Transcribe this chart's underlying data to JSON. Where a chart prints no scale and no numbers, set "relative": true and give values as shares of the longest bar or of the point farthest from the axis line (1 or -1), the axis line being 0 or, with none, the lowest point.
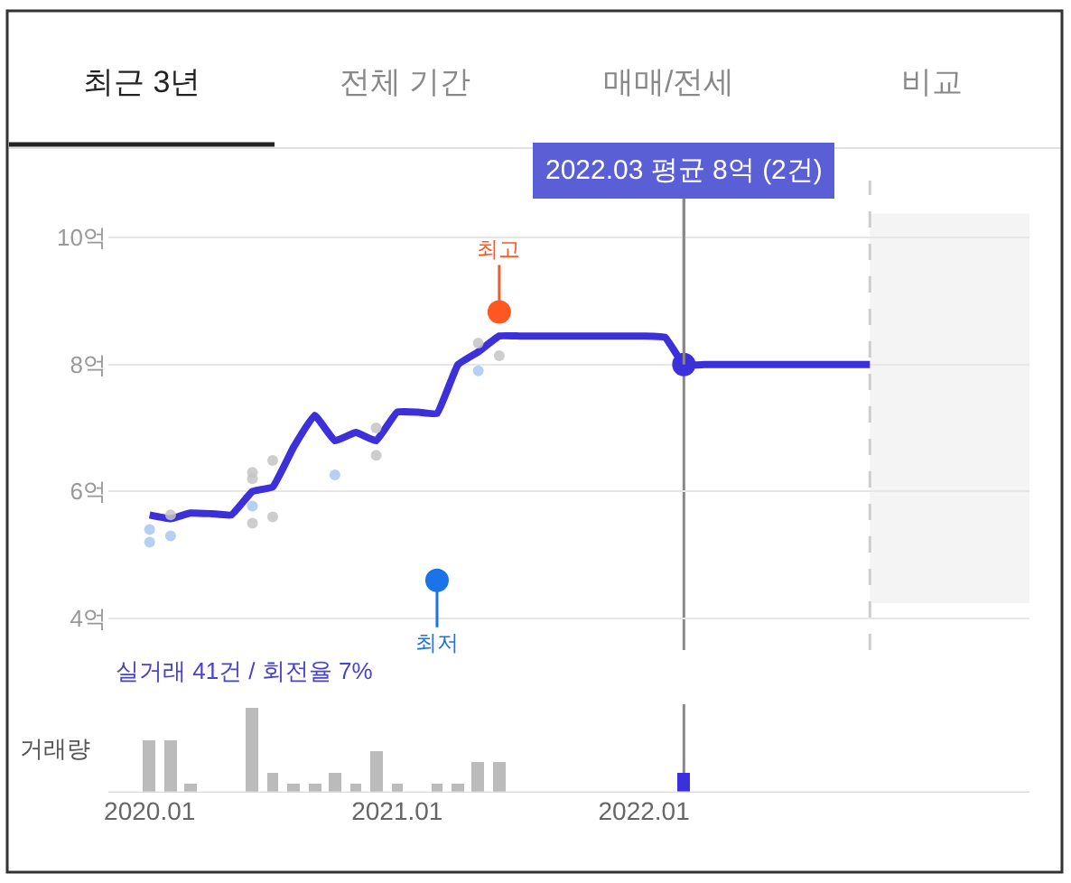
{
  "chart_data": [
    {
      "type": "other",
      "annotations": [
        "최근 3년",
        "전체 기간",
        "매매/전세",
        "비교"
      ]
    },
    {
      "type": "line",
      "x": [
        "2020-01",
        "2020-02",
        "2020-03",
        "2020-04",
        "2020-05",
        "2020-06",
        "2020-07",
        "2020-08",
        "2020-09",
        "2020-10",
        "2020-11",
        "2020-12",
        "2021-01",
        "2021-02",
        "2021-03",
        "2021-04",
        "2021-05",
        "2021-06",
        "2021-07",
        "2021-08",
        "2021-09",
        "2021-10",
        "2021-11",
        "2021-12",
        "2022-01",
        "2022-02",
        "2022-03",
        "2022-04",
        "2022-05",
        "2022-06",
        "2022-07",
        "2022-08",
        "2022-09",
        "2022-10",
        "2022-11",
        "2022-12"
      ],
      "series": [
        {
          "type": "line",
          "marker": "none",
          "color": "#3b30d9",
          "values": [
            5.63,
            5.57,
            5.66,
            5.65,
            5.63,
            6.0,
            6.07,
            6.7,
            7.2,
            6.8,
            6.93,
            6.8,
            7.25,
            7.25,
            7.23,
            8.0,
            8.2,
            8.45,
            8.45,
            8.45,
            8.45,
            8.45,
            8.45,
            8.45,
            8.45,
            8.43,
            8.0,
            8.0,
            8.0,
            8.0,
            8.0,
            8.0,
            8.0,
            8.0,
            8.0,
            8.0
          ]
        },
        {
          "type": "scatter",
          "color": "#c4c4c4",
          "x": [
            "2020-02",
            "2020-06",
            "2020-06",
            "2020-06",
            "2020-07",
            "2020-07",
            "2020-12",
            "2020-12",
            "2021-05",
            "2021-06"
          ],
          "values": [
            5.63,
            6.3,
            6.2,
            5.5,
            6.49,
            5.6,
            7.0,
            6.57,
            8.34,
            8.14
          ]
        },
        {
          "type": "scatter",
          "color": "#a8c8f0",
          "x": [
            "2020-01",
            "2020-01",
            "2020-02",
            "2020-06",
            "2020-10",
            "2021-05"
          ],
          "values": [
            5.4,
            5.2,
            5.3,
            5.77,
            6.26,
            7.9
          ]
        },
        {
          "type": "scatter",
          "colors": [
            "#ff5722",
            "#1a73e8",
            "#3b30d9"
          ],
          "x": [
            "2021-06",
            "2021-03",
            "2022-03"
          ],
          "values": [
            8.83,
            4.6,
            8.0
          ]
        }
      ],
      "xlim": [
        "2019-11-01",
        "2023-07-25"
      ],
      "ylim": [
        3.5,
        10.9
      ],
      "yticks": [
        {
          "value": 4,
          "label": "4억"
        },
        {
          "value": 6,
          "label": "6억"
        },
        {
          "value": 8,
          "label": "8억"
        },
        {
          "value": 10,
          "label": "10억"
        }
      ],
      "tick_labels": "y",
      "grid": "y",
      "marker": "circle",
      "ref_lines": [
        {
          "axis": "x",
          "value": "2022-03",
          "color": "#888888"
        },
        {
          "axis": "x",
          "value": "2022-12",
          "color": "#cccccc",
          "line_style": "dashed"
        }
      ],
      "bands": [
        {
          "axis": "x",
          "from": "2022-12",
          "to": "2023-07-25",
          "color": "#f4f4f4"
        }
      ],
      "annotations": [
        {
          "text": "최고",
          "x": "2021-06",
          "y": 8.83
        },
        {
          "text": "최저",
          "x": "2021-03",
          "y": 4.6
        },
        {
          "text": "2022.03 평균 8억 (2건)",
          "x": "2022-03",
          "y": 8
        },
        "실거래 41건 / 회전율 7%"
      ]
    },
    {
      "type": "bar",
      "ylabel": "거래량",
      "relative": true,
      "x": [
        "2020-01",
        "2020-02",
        "2020-03",
        "2020-06",
        "2020-07",
        "2020-08",
        "2020-09",
        "2020-10",
        "2020-11",
        "2020-12",
        "2021-01",
        "2021-03",
        "2021-04",
        "2021-05",
        "2021-06",
        "2022-03"
      ],
      "values": [
        0.62,
        0.62,
        0.1,
        1,
        0.24,
        0.1,
        0.1,
        0.24,
        0.1,
        0.5,
        0.1,
        0.1,
        0.1,
        0.36,
        0.36,
        0.24
      ],
      "colors": [
        "#bbbbbb",
        "#bbbbbb",
        "#bbbbbb",
        "#bbbbbb",
        "#bbbbbb",
        "#bbbbbb",
        "#bbbbbb",
        "#bbbbbb",
        "#bbbbbb",
        "#bbbbbb",
        "#bbbbbb",
        "#bbbbbb",
        "#bbbbbb",
        "#bbbbbb",
        "#bbbbbb",
        "#3b30d9"
      ],
      "xlim": [
        "2019-11-01",
        "2023-07-25"
      ],
      "xticks": [
        {
          "value": "2020-01",
          "label": "2020.01"
        },
        {
          "value": "2021-01",
          "label": "2021.01"
        },
        {
          "value": "2022-01",
          "label": "2022.01"
        }
      ],
      "tick_labels": "x",
      "grid": false,
      "ref_lines": [
        {
          "axis": "x",
          "value": "2022-03",
          "color": "#888888"
        }
      ]
    }
  ]
}
